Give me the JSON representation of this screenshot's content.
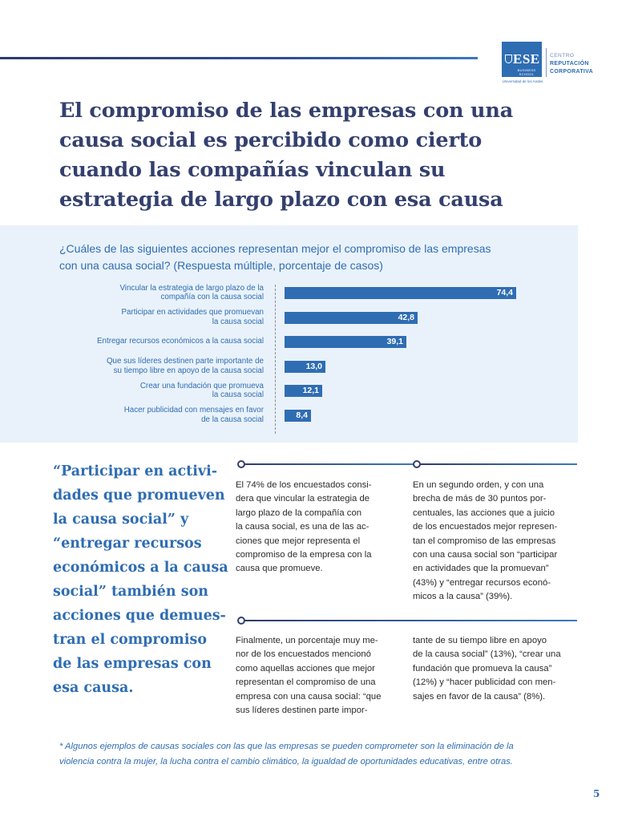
{
  "logo": {
    "ese": "ESE",
    "business_school": "BUSINESS SCHOOL",
    "university": "Universidad de los Andes",
    "centro": "CENTRO",
    "reputacion": "REPUTACIÓN",
    "corporativa": "CORPORATIVA"
  },
  "title_lines": [
    "El compromiso de las empresas con una",
    "causa social es percibido como cierto",
    "cuando las compañías vinculan su",
    "estrategia de largo plazo con esa causa"
  ],
  "chart_data": {
    "type": "bar",
    "orientation": "horizontal",
    "title_lines": [
      "¿Cuáles de las siguientes acciones representan mejor el compromiso de las empresas",
      "con una causa social? (Respuesta múltiple, porcentaje de casos)"
    ],
    "categories": [
      [
        "Vincular la estrategia de largo plazo de la",
        "compañía con la causa social"
      ],
      [
        "Participar en actividades que promuevan",
        "la causa social"
      ],
      [
        "Entregar recursos económicos a la causa social"
      ],
      [
        "Que sus líderes destinen parte importante de",
        "su tiempo libre en apoyo de la causa social"
      ],
      [
        "Crear una fundación que promueva",
        "la causa social"
      ],
      [
        "Hacer publicidad con mensajes en favor",
        "de la causa social"
      ]
    ],
    "values": [
      74.4,
      42.8,
      39.1,
      13.0,
      12.1,
      8.4
    ],
    "value_labels": [
      "74,4",
      "42,8",
      "39,1",
      "13,0",
      "12,1",
      "8,4"
    ],
    "xlim": [
      0,
      80
    ],
    "bar_color": "#2f6db3"
  },
  "quote_lines": [
    "“Participar en activi-",
    "dades que promueven",
    "la causa social” y",
    "“entregar recursos",
    "económicos a la causa",
    "social” también son",
    "acciones que demues-",
    "tran el compromiso",
    "de las empresas con",
    "esa causa."
  ],
  "col1_lines": [
    "El 74% de los encuestados consi-",
    "dera que vincular la estrategia de",
    "largo plazo de la compañía con",
    "la causa social, es una de las ac-",
    "ciones que mejor representa el",
    "compromiso de la empresa con la",
    "causa que promueve."
  ],
  "col2_lines": [
    "En un segundo orden, y con una",
    "brecha de más de 30 puntos por-",
    "centuales, las acciones que a juicio",
    "de los encuestados mejor represen-",
    "tan el compromiso de las empresas",
    "con una causa social son “participar",
    "en actividades que la promuevan”",
    "(43%) y “entregar recursos econó-",
    "micos a la causa” (39%)."
  ],
  "col3_lines": [
    "Finalmente, un porcentaje muy me-",
    "nor de los encuestados mencionó",
    "como aquellas acciones que mejor",
    "representan el compromiso de una",
    "empresa con una causa social: “que",
    "sus líderes destinen parte impor-"
  ],
  "col4_lines": [
    "tante de su tiempo libre en apoyo",
    "de la causa social” (13%), “crear una",
    "fundación que promueva la causa”",
    "(12%) y “hacer publicidad con men-",
    "sajes en favor de la causa” (8%)."
  ],
  "footnote_lines": [
    "* Algunos ejemplos de causas sociales con las que las empresas se pueden comprometer son la eliminación de la",
    "violencia contra la mujer, la lucha contra el cambio climático, la igualdad de oportunidades educativas, entre otras."
  ],
  "page_number": "5",
  "colors": {
    "navy": "#34406e",
    "blue": "#2f6db3",
    "panel": "#e9f2fa"
  }
}
